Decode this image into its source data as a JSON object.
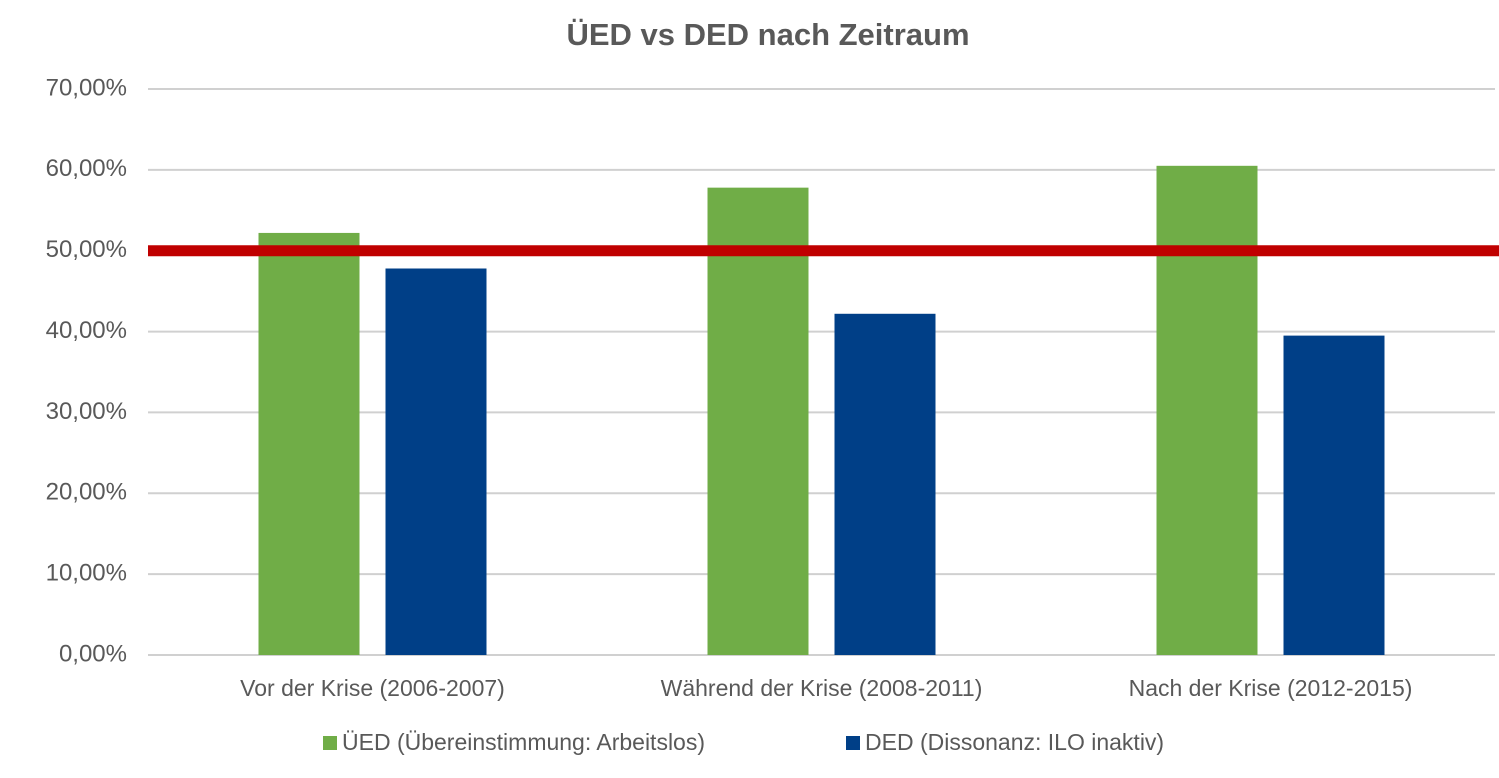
{
  "chart_data": {
    "type": "bar",
    "title": "ÜED vs DED nach Zeitraum",
    "categories": [
      "Vor der Krise (2006-2007)",
      "Während der Krise (2008-2011)",
      "Nach der Krise (2012-2015)"
    ],
    "series": [
      {
        "name": "ÜED (Übereinstimmung: Arbeitslos)",
        "color": "#70ad47",
        "values": [
          52.2,
          57.8,
          60.5
        ]
      },
      {
        "name": "DED (Dissonanz: ILO inaktiv)",
        "color": "#003f87",
        "values": [
          47.8,
          42.2,
          39.5
        ]
      }
    ],
    "ylim": [
      0,
      70
    ],
    "yticks": [
      {
        "value": 0,
        "label": "0,00%"
      },
      {
        "value": 10,
        "label": "10,00%"
      },
      {
        "value": 20,
        "label": "20,00%"
      },
      {
        "value": 30,
        "label": "30,00%"
      },
      {
        "value": 40,
        "label": "40,00%"
      },
      {
        "value": 50,
        "label": "50,00%"
      },
      {
        "value": 60,
        "label": "60,00%"
      },
      {
        "value": 70,
        "label": "70,00%"
      }
    ],
    "grid": true,
    "reference_line": {
      "value": 50,
      "color": "#c00000"
    },
    "legend": "bottom"
  }
}
